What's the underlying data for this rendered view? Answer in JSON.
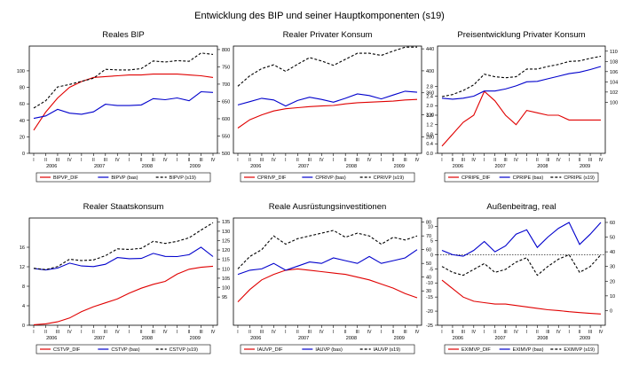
{
  "figure_title": "Entwicklung des BIP und seiner Hauptkomponenten (s19)",
  "colors": {
    "dif": "#e00000",
    "base": "#0000cc",
    "s19": "#000000"
  },
  "quarters": [
    "I",
    "II",
    "III",
    "IV",
    "I",
    "II",
    "III",
    "IV",
    "I",
    "II",
    "III",
    "IV",
    "I",
    "II",
    "III",
    "IV"
  ],
  "years": [
    "2006",
    "2007",
    "2008",
    "2009"
  ],
  "chart_data": [
    {
      "type": "line",
      "title": "Reales BIP",
      "left_axis": {
        "ticks": [
          0,
          20,
          40,
          60,
          80,
          100
        ],
        "labels": [
          "0",
          "20",
          "40",
          "60",
          "80",
          "100"
        ]
      },
      "right_axis": {
        "ticks": [
          500,
          550,
          600,
          650,
          700,
          750,
          800
        ],
        "labels": [
          "500",
          "550",
          "600",
          "650",
          "700",
          "750",
          "800"
        ]
      },
      "series": [
        {
          "name": "BIPVP_DIF",
          "axis": "left",
          "style": "dif",
          "values": [
            28,
            50,
            67,
            80,
            87,
            92,
            93,
            94,
            95,
            95,
            96,
            96,
            96,
            95,
            94,
            92
          ]
        },
        {
          "name": "BIPVP (bas)",
          "axis": "right",
          "style": "base",
          "values": [
            601,
            608,
            627,
            616,
            613,
            620,
            642,
            638,
            638,
            640,
            658,
            655,
            660,
            652,
            678,
            676
          ]
        },
        {
          "name": "BIPVP (s19)",
          "axis": "right",
          "style": "s19",
          "values": [
            631,
            652,
            692,
            699,
            708,
            717,
            743,
            741,
            741,
            745,
            767,
            764,
            768,
            766,
            790,
            786
          ]
        }
      ]
    },
    {
      "type": "line",
      "title": "Realer Privater Konsum",
      "left_axis": {
        "ticks": [],
        "labels": []
      },
      "right_axis": {
        "ticks": [
          280,
          320,
          360,
          400,
          440
        ],
        "labels": [
          "280",
          "320",
          "360",
          "400",
          "440"
        ]
      },
      "series": [
        {
          "name": "CPRIVP_DIF",
          "axis": "right",
          "style": "dif",
          "values": [
            296,
            311,
            320,
            327,
            331,
            333,
            335,
            336,
            337,
            340,
            342,
            343,
            344,
            345,
            347,
            348
          ]
        },
        {
          "name": "CPRIVP (bas)",
          "axis": "right",
          "style": "base",
          "values": [
            338,
            344,
            350,
            347,
            336,
            346,
            352,
            348,
            343,
            350,
            358,
            355,
            349,
            356,
            363,
            361
          ]
        },
        {
          "name": "CPRIVP (s19)",
          "axis": "right",
          "style": "s19",
          "values": [
            372,
            391,
            404,
            411,
            399,
            412,
            424,
            418,
            410,
            421,
            432,
            432,
            428,
            436,
            443,
            443
          ]
        }
      ]
    },
    {
      "type": "line",
      "title": "Preisentwicklung Privater Konsum",
      "left_axis": {
        "ticks": [
          0,
          0.4,
          0.8,
          1.2,
          1.6,
          2.0,
          2.4,
          2.8
        ],
        "labels": [
          "0.0",
          "0.4",
          "0.8",
          "1.2",
          "1.6",
          "2.0",
          "2.4",
          "2.8"
        ]
      },
      "right_axis": {
        "ticks": [
          100,
          102,
          104,
          106,
          108,
          110
        ],
        "labels": [
          "100",
          "102",
          "104",
          "106",
          "108",
          "110"
        ]
      },
      "series": [
        {
          "name": "CPRIPE_DIF",
          "axis": "left",
          "style": "dif",
          "values": [
            0.3,
            0.8,
            1.3,
            1.6,
            2.6,
            2.2,
            1.6,
            1.2,
            1.8,
            1.7,
            1.6,
            1.6,
            1.4,
            1.4,
            1.4,
            1.4
          ]
        },
        {
          "name": "CPRIPE (bas)",
          "axis": "right",
          "style": "base",
          "values": [
            100.8,
            100.6,
            100.8,
            101.2,
            102.2,
            102.2,
            102.6,
            103.2,
            104.0,
            104.1,
            104.6,
            105.1,
            105.6,
            105.9,
            106.4,
            107.0
          ]
        },
        {
          "name": "CPRIPE (s19)",
          "axis": "right",
          "style": "s19",
          "values": [
            101.1,
            101.5,
            102.3,
            103.4,
            105.5,
            105.0,
            104.8,
            105.0,
            106.5,
            106.5,
            107.0,
            107.4,
            108.0,
            108.1,
            108.6,
            109.0
          ]
        }
      ]
    },
    {
      "type": "line",
      "title": "Realer Staatskonsum",
      "left_axis": {
        "ticks": [
          0,
          4,
          8,
          12,
          16
        ],
        "labels": [
          "0",
          "4",
          "8",
          "12",
          "16"
        ]
      },
      "right_axis": {
        "ticks": [
          95,
          100,
          105,
          110,
          115,
          120,
          125,
          130,
          135
        ],
        "labels": [
          "95",
          "100",
          "105",
          "110",
          "115",
          "120",
          "125",
          "130",
          "135"
        ]
      },
      "series": [
        {
          "name": "CSTVP_DIF",
          "axis": "left",
          "style": "dif",
          "values": [
            0.1,
            0.3,
            0.7,
            1.5,
            2.8,
            3.8,
            4.6,
            5.4,
            6.6,
            7.6,
            8.4,
            9.0,
            10.5,
            11.5,
            11.9,
            12.1
          ]
        },
        {
          "name": "CSTVP (bas)",
          "axis": "right",
          "style": "base",
          "values": [
            110.2,
            109.4,
            110.4,
            113.0,
            111.5,
            111.2,
            112.4,
            116.0,
            115.4,
            115.5,
            118.2,
            116.6,
            116.5,
            117.5,
            121.5,
            116.5
          ]
        },
        {
          "name": "CSTVP (s19)",
          "axis": "right",
          "style": "s19",
          "values": [
            110.3,
            109.6,
            111.2,
            115.1,
            114.4,
            114.7,
            117.0,
            120.6,
            120.3,
            120.9,
            124.6,
            123.5,
            124.6,
            126.5,
            130.6,
            134.5
          ]
        }
      ]
    },
    {
      "type": "line",
      "title": "Reale Ausrüstungsinvestitionen",
      "left_axis": {
        "ticks": [],
        "labels": []
      },
      "right_axis": {
        "ticks": [
          30,
          40,
          50,
          60,
          70,
          80
        ],
        "labels": [
          "30",
          "40",
          "50",
          "60",
          "70",
          "80"
        ]
      },
      "series": [
        {
          "name": "IAUVP_DIF",
          "axis": "right",
          "style": "dif",
          "values": [
            22,
            31,
            38,
            42,
            45,
            46,
            45,
            44,
            43,
            42,
            40,
            38,
            35,
            32,
            28,
            25
          ]
        },
        {
          "name": "IAUVP (bas)",
          "axis": "right",
          "style": "base",
          "values": [
            42,
            45,
            46,
            50,
            45,
            48,
            51,
            50,
            54,
            52,
            50,
            55,
            50,
            52,
            54,
            60
          ]
        },
        {
          "name": "IAUVP (s19)",
          "axis": "right",
          "style": "s19",
          "values": [
            46,
            55,
            60,
            70,
            64,
            68,
            70,
            72,
            74,
            69,
            72,
            70,
            64,
            69,
            67,
            70
          ]
        }
      ]
    },
    {
      "type": "line",
      "title": "Außenbeitrag, real",
      "left_axis": {
        "ticks": [
          -25,
          -20,
          -15,
          -10,
          -5,
          0,
          5,
          10
        ],
        "labels": [
          "-25",
          "-20",
          "-15",
          "-10",
          "-5",
          "0",
          "5",
          "10"
        ]
      },
      "right_axis": {
        "ticks": [
          0,
          10,
          20,
          30,
          40,
          50,
          60
        ],
        "labels": [
          "0",
          "10",
          "20",
          "30",
          "40",
          "50",
          "60"
        ]
      },
      "series": [
        {
          "name": "EXIMVP_DIF",
          "axis": "left",
          "style": "dif",
          "values": [
            -9,
            -12,
            -15,
            -16.5,
            -17,
            -17.5,
            -17.5,
            -18,
            -18.5,
            -19,
            -19.5,
            -19.8,
            -20.2,
            -20.5,
            -20.8,
            -21
          ]
        },
        {
          "name": "EXIMVP (bas)",
          "axis": "right",
          "style": "base",
          "values": [
            41,
            38,
            37,
            41,
            47,
            40,
            44,
            52,
            55,
            43,
            50,
            56,
            60,
            45,
            52,
            60
          ]
        },
        {
          "name": "EXIMVP (s19)",
          "axis": "right",
          "style": "s19",
          "values": [
            30,
            26,
            24,
            28,
            32,
            26,
            28,
            33,
            36,
            24,
            30,
            35,
            38,
            26,
            30,
            38
          ]
        }
      ]
    }
  ]
}
